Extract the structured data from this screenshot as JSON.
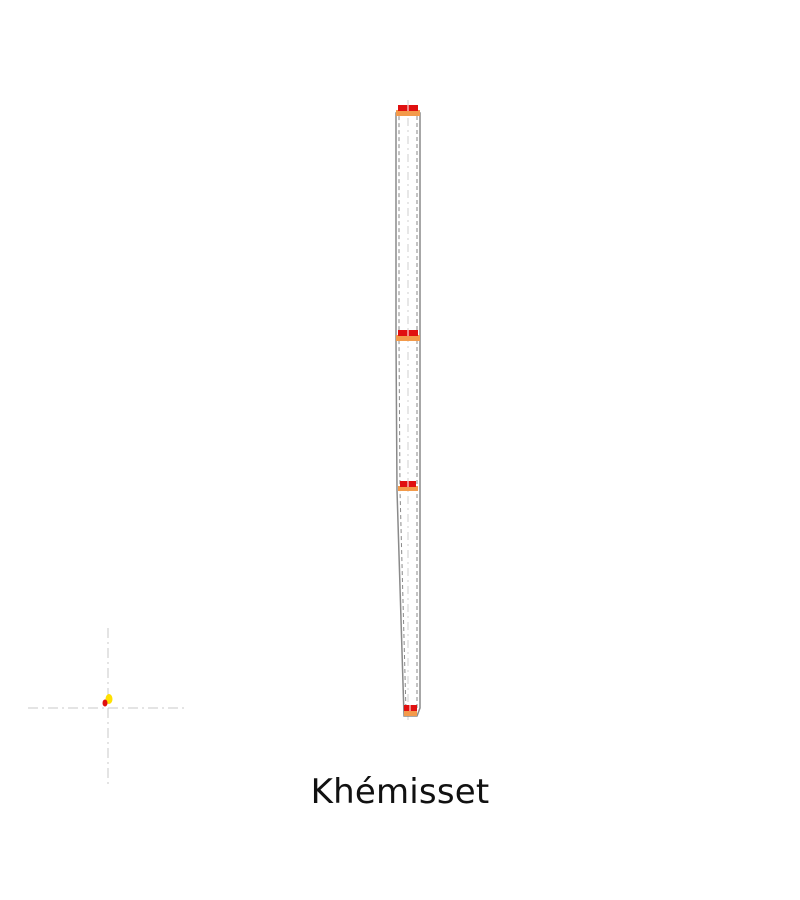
{
  "caption": "Khémisset",
  "colors": {
    "outline": "#8a8a8a",
    "guide": "#c8c8c8",
    "marker_red": "#e01010",
    "marker_orange": "#f39a4a",
    "dot_yellow": "#ffe000",
    "dot_red": "#e01010"
  },
  "markers": [
    "marker-top",
    "marker-upper",
    "marker-middle",
    "marker-bottom"
  ]
}
